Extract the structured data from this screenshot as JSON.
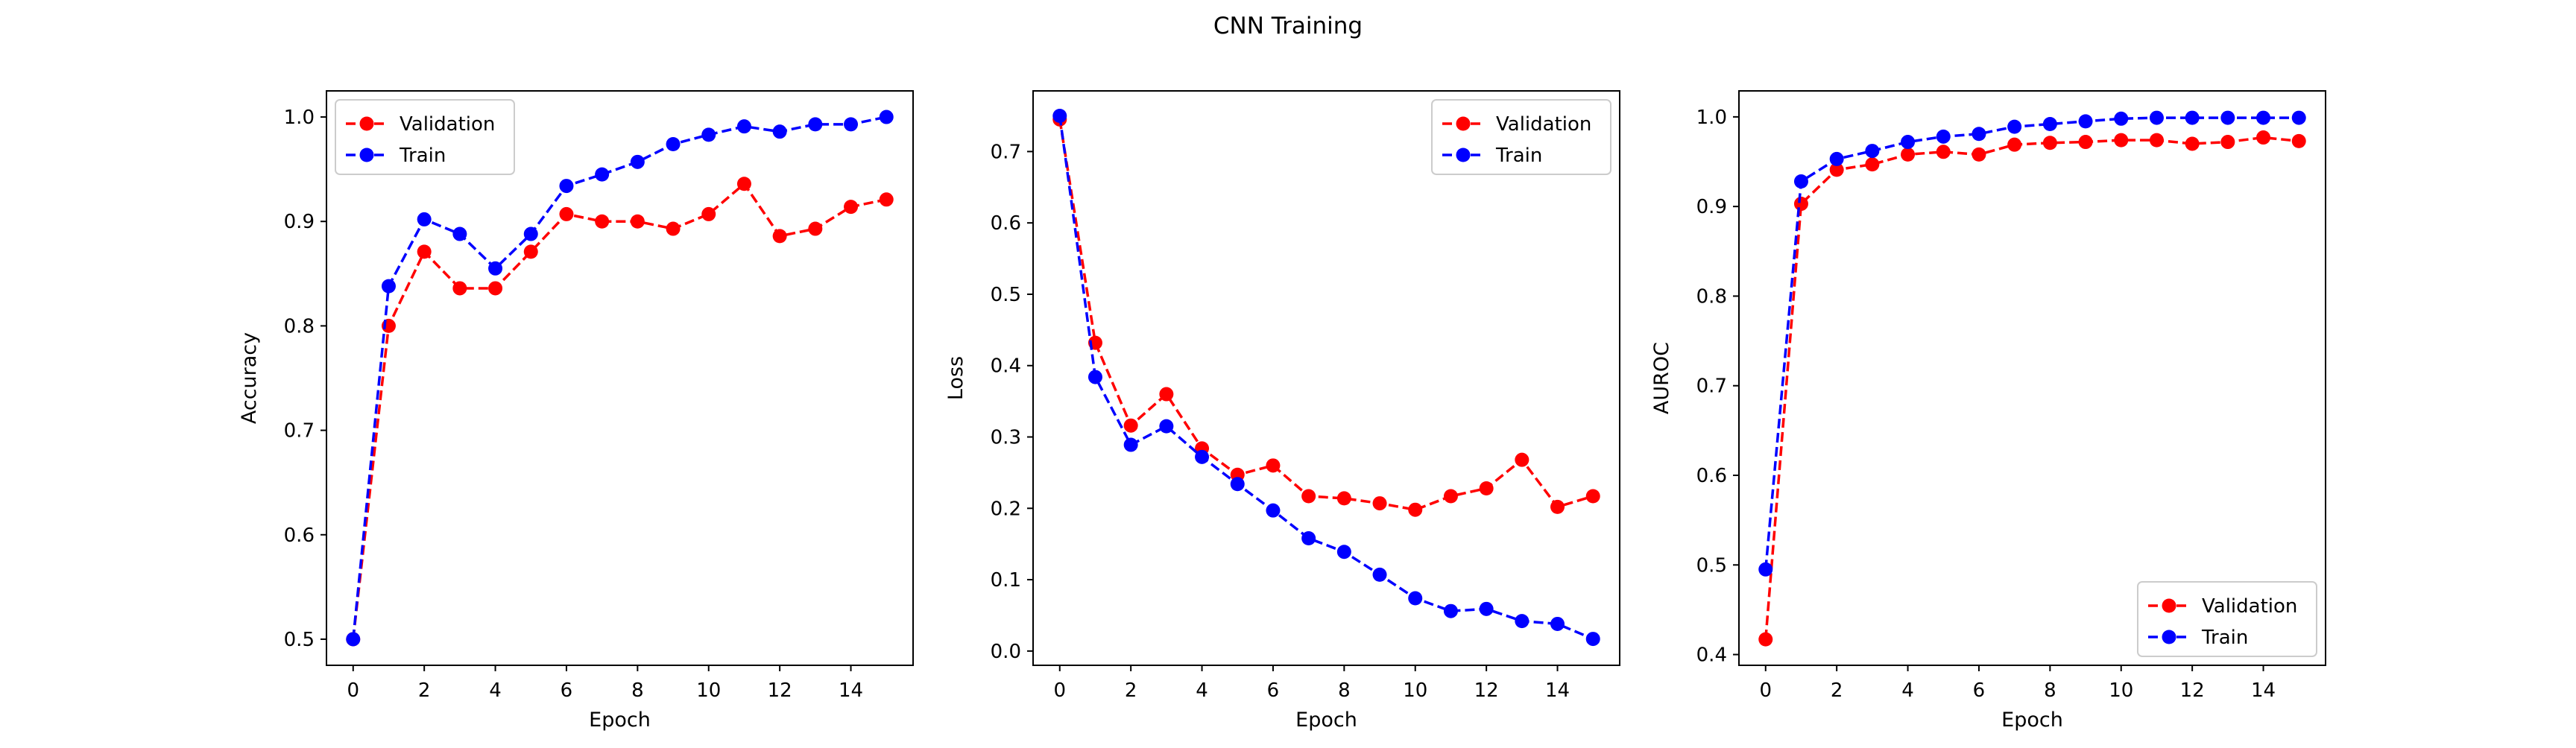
{
  "figure": {
    "title": "CNN Training"
  },
  "chart_data": [
    {
      "type": "line",
      "title": "",
      "xlabel": "Epoch",
      "ylabel": "Accuracy",
      "xlim": [
        -0.75,
        15.75
      ],
      "ylim": [
        0.475,
        1.025
      ],
      "xticks": [
        0,
        2,
        4,
        6,
        8,
        10,
        12,
        14
      ],
      "yticks": [
        0.5,
        0.6,
        0.7,
        0.8,
        0.9,
        1.0
      ],
      "ytick_labels": [
        "0.5",
        "0.6",
        "0.7",
        "0.8",
        "0.9",
        "1.0"
      ],
      "legend": "upper-left",
      "x": [
        0,
        1,
        2,
        3,
        4,
        5,
        6,
        7,
        8,
        9,
        10,
        11,
        12,
        13,
        14,
        15
      ],
      "series": [
        {
          "name": "Validation",
          "color": "#ff0000",
          "values": [
            0.5,
            0.8,
            0.871,
            0.836,
            0.836,
            0.871,
            0.907,
            0.9,
            0.9,
            0.893,
            0.907,
            0.936,
            0.886,
            0.893,
            0.914,
            0.921
          ]
        },
        {
          "name": "Train",
          "color": "#0000ff",
          "values": [
            0.5,
            0.838,
            0.902,
            0.888,
            0.855,
            0.888,
            0.934,
            0.945,
            0.957,
            0.974,
            0.983,
            0.991,
            0.986,
            0.993,
            0.993,
            1.0
          ]
        }
      ]
    },
    {
      "type": "line",
      "title": "",
      "xlabel": "Epoch",
      "ylabel": "Loss",
      "xlim": [
        -0.75,
        15.75
      ],
      "ylim": [
        -0.02,
        0.785
      ],
      "xticks": [
        0,
        2,
        4,
        6,
        8,
        10,
        12,
        14
      ],
      "yticks": [
        0.0,
        0.1,
        0.2,
        0.3,
        0.4,
        0.5,
        0.6,
        0.7
      ],
      "ytick_labels": [
        "0.0",
        "0.1",
        "0.2",
        "0.3",
        "0.4",
        "0.5",
        "0.6",
        "0.7"
      ],
      "legend": "upper-right",
      "x": [
        0,
        1,
        2,
        3,
        4,
        5,
        6,
        7,
        8,
        9,
        10,
        11,
        12,
        13,
        14,
        15
      ],
      "series": [
        {
          "name": "Validation",
          "color": "#ff0000",
          "values": [
            0.745,
            0.432,
            0.316,
            0.36,
            0.284,
            0.247,
            0.26,
            0.217,
            0.214,
            0.207,
            0.198,
            0.217,
            0.228,
            0.268,
            0.202,
            0.217
          ]
        },
        {
          "name": "Train",
          "color": "#0000ff",
          "values": [
            0.75,
            0.384,
            0.289,
            0.315,
            0.272,
            0.234,
            0.197,
            0.158,
            0.139,
            0.107,
            0.074,
            0.056,
            0.059,
            0.042,
            0.038,
            0.017
          ]
        }
      ]
    },
    {
      "type": "line",
      "title": "",
      "xlabel": "Epoch",
      "ylabel": "AUROC",
      "xlim": [
        -0.75,
        15.75
      ],
      "ylim": [
        0.388,
        1.029
      ],
      "xticks": [
        0,
        2,
        4,
        6,
        8,
        10,
        12,
        14
      ],
      "yticks": [
        0.4,
        0.5,
        0.6,
        0.7,
        0.8,
        0.9,
        1.0
      ],
      "ytick_labels": [
        "0.4",
        "0.5",
        "0.6",
        "0.7",
        "0.8",
        "0.9",
        "1.0"
      ],
      "legend": "lower-right",
      "x": [
        0,
        1,
        2,
        3,
        4,
        5,
        6,
        7,
        8,
        9,
        10,
        11,
        12,
        13,
        14,
        15
      ],
      "series": [
        {
          "name": "Validation",
          "color": "#ff0000",
          "values": [
            0.417,
            0.903,
            0.941,
            0.947,
            0.958,
            0.961,
            0.958,
            0.969,
            0.971,
            0.972,
            0.974,
            0.974,
            0.97,
            0.972,
            0.977,
            0.973
          ]
        },
        {
          "name": "Train",
          "color": "#0000ff",
          "values": [
            0.495,
            0.928,
            0.953,
            0.962,
            0.972,
            0.978,
            0.981,
            0.989,
            0.992,
            0.995,
            0.998,
            0.999,
            0.999,
            0.999,
            0.999,
            0.999
          ]
        }
      ]
    }
  ]
}
